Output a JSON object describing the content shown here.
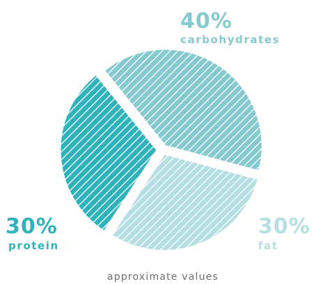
{
  "chart_data": {
    "type": "pie",
    "title": "",
    "note": "approximate values",
    "slices": [
      {
        "name": "carbohydrates",
        "value": 40,
        "value_label": "40%",
        "color": "#86c9cf"
      },
      {
        "name": "fat",
        "value": 30,
        "value_label": "30%",
        "color": "#b5dfe3"
      },
      {
        "name": "protein",
        "value": 30,
        "value_label": "30%",
        "color": "#2fb2ba"
      }
    ],
    "pattern": "diagonal-stripes",
    "legend": "none"
  }
}
